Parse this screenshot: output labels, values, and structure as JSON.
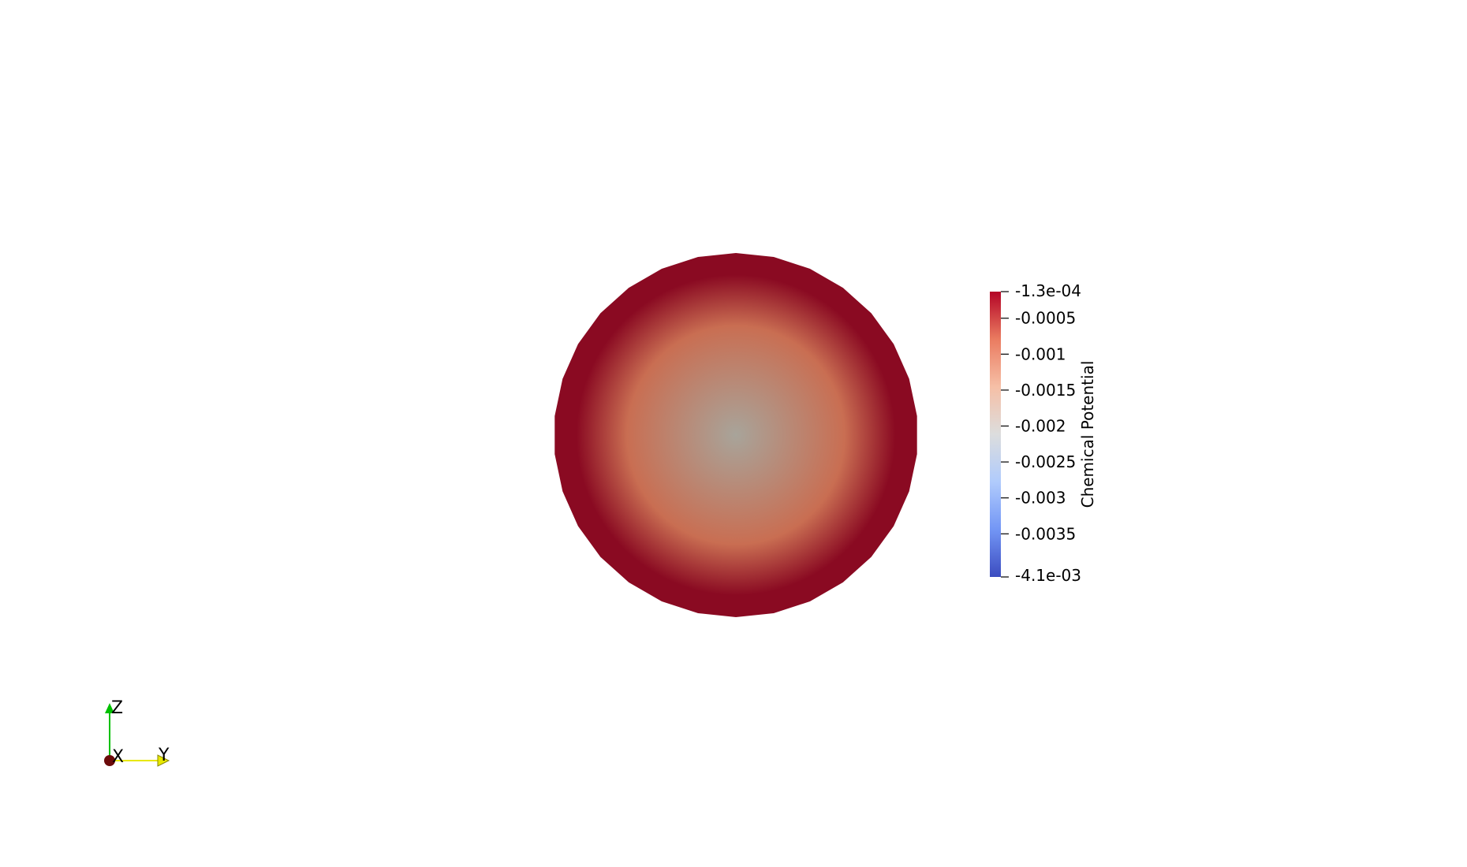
{
  "scalar_bar": {
    "title": "Chemical Potential",
    "range": {
      "max": -0.00013,
      "min": -0.0041
    },
    "max_label": "-1.3e-04",
    "min_label": "-4.1e-03",
    "ticks": [
      {
        "value": -0.0005,
        "label": "-0.0005"
      },
      {
        "value": -0.001,
        "label": "-0.001"
      },
      {
        "value": -0.0015,
        "label": "-0.0015"
      },
      {
        "value": -0.002,
        "label": "-0.002"
      },
      {
        "value": -0.0025,
        "label": "-0.0025"
      },
      {
        "value": -0.003,
        "label": "-0.003"
      },
      {
        "value": -0.0035,
        "label": "-0.0035"
      }
    ],
    "colormap": [
      "#3b4cc0",
      "#7396f5",
      "#b0cbfc",
      "#dcdddd",
      "#f6bfa6",
      "#ea7b60",
      "#b40426"
    ]
  },
  "sphere": {
    "center_color": "#a8a49a",
    "mid_color": "#c96e52",
    "edge_color": "#8a0a22"
  },
  "orientation_axes": {
    "x_label": "X",
    "y_label": "Y",
    "z_label": "Z",
    "x_color": "#6b0a0a",
    "y_color": "#e8e800",
    "z_color": "#00c000"
  }
}
